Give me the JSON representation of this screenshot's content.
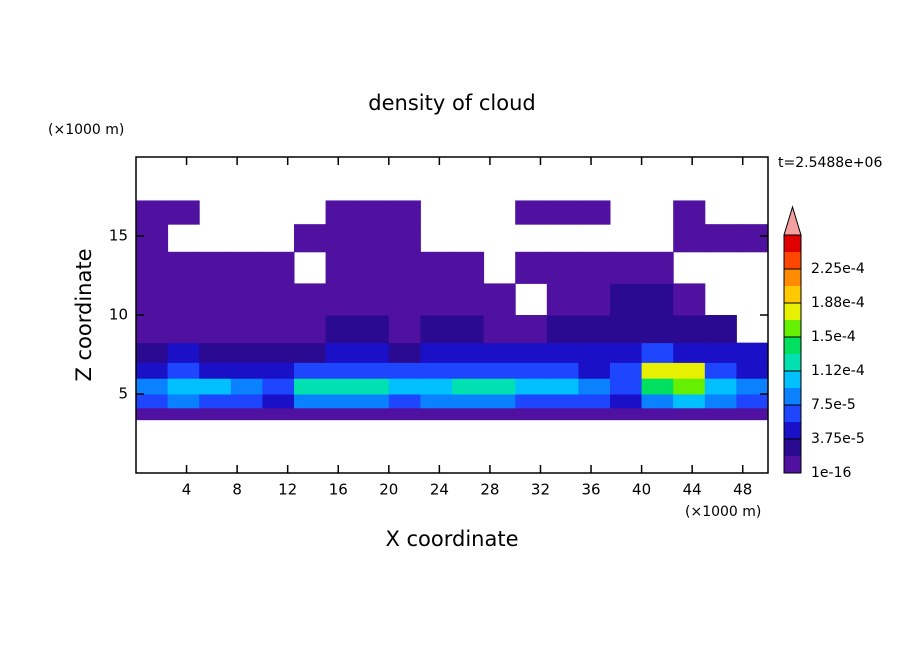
{
  "chart_data": {
    "type": "contour",
    "title": "density of cloud",
    "x_label": "X coordinate",
    "y_label": "Z coordinate",
    "x_unit": "(×1000 m)",
    "y_unit": "(×1000 m)",
    "annotation": "t=2.5488e+06",
    "xlim": [
      0,
      50
    ],
    "ylim": [
      0,
      20
    ],
    "xticks": [
      4,
      8,
      12,
      16,
      20,
      24,
      28,
      32,
      36,
      40,
      44,
      48
    ],
    "yticks": [
      5,
      10,
      15
    ],
    "x": [
      1.25,
      3.75,
      6.25,
      8.75,
      11.25,
      13.75,
      16.25,
      18.75,
      21.25,
      23.75,
      26.25,
      28.75,
      31.25,
      33.75,
      36.25,
      38.75,
      41.25,
      43.75,
      46.25,
      48.75
    ],
    "z": [
      3.75,
      4.5,
      5.5,
      6.5,
      7.5,
      9,
      11,
      13,
      15,
      16.5
    ],
    "field": [
      [
        1.5e-05,
        1.5e-05,
        1.5e-05,
        1.5e-05,
        1.5e-05,
        1.5e-05,
        1.5e-05,
        1.5e-05,
        1.5e-05,
        1.5e-05,
        1.5e-05,
        1.5e-05,
        1.5e-05,
        1.5e-05,
        1.5e-05,
        1.5e-05,
        1.5e-05,
        1.5e-05,
        1.5e-05,
        1.5e-05
      ],
      [
        6e-05,
        8e-05,
        7e-05,
        6e-05,
        5e-05,
        8e-05,
        9e-05,
        8e-05,
        7e-05,
        8e-05,
        9e-05,
        9e-05,
        7e-05,
        7e-05,
        6e-05,
        5e-05,
        9e-05,
        0.0001,
        8e-05,
        7e-05
      ],
      [
        9e-05,
        0.00011,
        0.0001,
        8e-05,
        7e-05,
        0.00012,
        0.00013,
        0.00012,
        0.0001,
        0.00011,
        0.00013,
        0.00013,
        0.00011,
        0.0001,
        8e-05,
        6e-05,
        0.00015,
        0.00016,
        0.00011,
        9e-05
      ],
      [
        5e-05,
        6e-05,
        5e-05,
        4e-05,
        4e-05,
        6e-05,
        7e-05,
        7e-05,
        6e-05,
        6e-05,
        7e-05,
        7e-05,
        6e-05,
        6e-05,
        5e-05,
        6e-05,
        0.00018,
        0.00017,
        7e-05,
        5e-05
      ],
      [
        3e-05,
        4e-05,
        3e-05,
        2.5e-05,
        2.5e-05,
        3e-05,
        4e-05,
        4e-05,
        3e-05,
        4e-05,
        4e-05,
        4e-05,
        4e-05,
        5e-05,
        5e-05,
        5e-05,
        6e-05,
        5e-05,
        4e-05,
        4e-05
      ],
      [
        1.5e-05,
        1.5e-05,
        1.2e-05,
        1.2e-05,
        1.5e-05,
        1.5e-05,
        2e-05,
        2e-05,
        1.5e-05,
        2e-05,
        2e-05,
        1.5e-05,
        1.5e-05,
        2.5e-05,
        3e-05,
        3e-05,
        3e-05,
        2.5e-05,
        2e-05,
        null
      ],
      [
        1e-05,
        1e-05,
        1e-05,
        1e-05,
        1e-05,
        1e-05,
        1e-05,
        1e-05,
        1e-05,
        1e-05,
        1e-05,
        1e-05,
        null,
        1e-05,
        1.5e-05,
        2e-05,
        2e-05,
        1.5e-05,
        null,
        null
      ],
      [
        1e-05,
        1e-05,
        1e-05,
        1e-05,
        1e-05,
        null,
        1e-05,
        1e-05,
        1e-05,
        1e-05,
        1e-05,
        null,
        1e-05,
        1e-05,
        1e-05,
        1e-05,
        1e-05,
        null,
        null,
        null
      ],
      [
        1e-05,
        null,
        null,
        null,
        null,
        1e-05,
        1e-05,
        1e-05,
        1e-05,
        null,
        null,
        null,
        null,
        null,
        null,
        null,
        null,
        1e-05,
        1e-05,
        1e-05
      ],
      [
        1e-05,
        1e-05,
        null,
        null,
        null,
        null,
        1e-05,
        1e-05,
        1e-05,
        null,
        null,
        null,
        1e-05,
        1e-05,
        1e-05,
        null,
        null,
        1e-05,
        null,
        null
      ]
    ],
    "colorbar": {
      "clim": [
        1e-16,
        0.0002625
      ],
      "colors": [
        "#5010a0",
        "#2a0a90",
        "#1a10c8",
        "#1e46ff",
        "#0a82ff",
        "#00c0ff",
        "#00e0b0",
        "#00e060",
        "#64f000",
        "#e6f000",
        "#ffc800",
        "#ff8c00",
        "#ff4600",
        "#e00000"
      ],
      "over_color": "#f4a0a0",
      "ticks": [
        {
          "value": 1e-16,
          "label": "1e-16"
        },
        {
          "value": 3.75e-05,
          "label": "3.75e-5"
        },
        {
          "value": 7.5e-05,
          "label": "7.5e-5"
        },
        {
          "value": 0.0001125,
          "label": "1.12e-4"
        },
        {
          "value": 0.00015,
          "label": "1.5e-4"
        },
        {
          "value": 0.0001875,
          "label": "1.88e-4"
        },
        {
          "value": 0.000225,
          "label": "2.25e-4"
        }
      ]
    }
  }
}
